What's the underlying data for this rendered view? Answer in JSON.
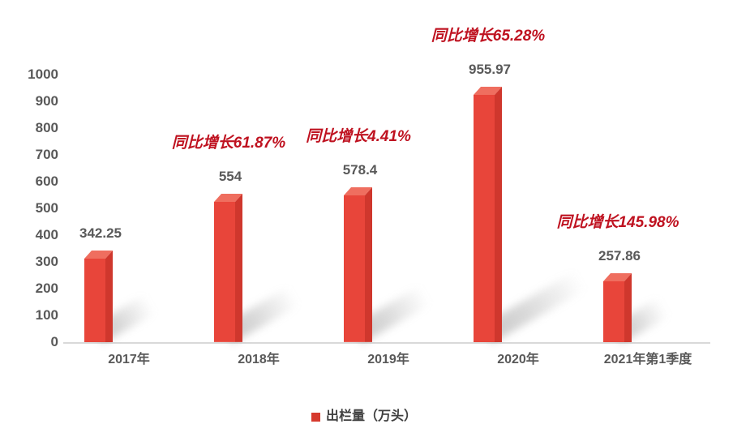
{
  "chart_data": {
    "type": "bar",
    "title": "",
    "categories": [
      "2017年",
      "2018年",
      "2019年",
      "2020年",
      "2021年第1季度"
    ],
    "series": [
      {
        "name": "出栏量（万头）",
        "values": [
          342.25,
          554,
          578.4,
          955.97,
          257.86
        ]
      }
    ],
    "value_labels": [
      "342.25",
      "554",
      "578.4",
      "955.97",
      "257.86"
    ],
    "annotations": [
      "",
      "同比增长61.87%",
      "同比增长4.41%",
      "同比增长65.28%",
      "同比增长145.98%"
    ],
    "y_ticks": [
      0,
      100,
      200,
      300,
      400,
      500,
      600,
      700,
      800,
      900,
      1000
    ],
    "ylim": [
      0,
      1000
    ],
    "grid": false,
    "legend_position": "bottom",
    "legend": {
      "label": "出栏量（万头）",
      "marker_color": "#d63a2e"
    },
    "colors": {
      "bar_front": "#e8453a",
      "bar_side": "#cf372d",
      "bar_top": "#ef6e5f",
      "annotation_text": "#bf1220",
      "label_text": "#595959",
      "axis_line": "#d9d9d9",
      "background": "#ffffff"
    }
  }
}
